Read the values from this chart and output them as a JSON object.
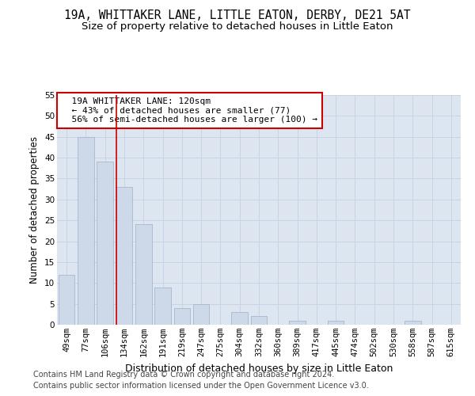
{
  "title1": "19A, WHITTAKER LANE, LITTLE EATON, DERBY, DE21 5AT",
  "title2": "Size of property relative to detached houses in Little Eaton",
  "xlabel": "Distribution of detached houses by size in Little Eaton",
  "ylabel": "Number of detached properties",
  "categories": [
    "49sqm",
    "77sqm",
    "106sqm",
    "134sqm",
    "162sqm",
    "191sqm",
    "219sqm",
    "247sqm",
    "275sqm",
    "304sqm",
    "332sqm",
    "360sqm",
    "389sqm",
    "417sqm",
    "445sqm",
    "474sqm",
    "502sqm",
    "530sqm",
    "558sqm",
    "587sqm",
    "615sqm"
  ],
  "values": [
    12,
    45,
    39,
    33,
    24,
    9,
    4,
    5,
    0,
    3,
    2,
    0,
    1,
    0,
    1,
    0,
    0,
    0,
    1,
    0,
    0
  ],
  "bar_color": "#cdd9e8",
  "bar_edgecolor": "#aabdd4",
  "redline_x": 2.57,
  "annotation_text": "  19A WHITTAKER LANE: 120sqm\n  ← 43% of detached houses are smaller (77)\n  56% of semi-detached houses are larger (100) →",
  "annotation_box_color": "#ffffff",
  "annotation_box_edgecolor": "#cc0000",
  "grid_color": "#c8d4e4",
  "background_color": "#dde5f0",
  "ylim": [
    0,
    55
  ],
  "yticks": [
    0,
    5,
    10,
    15,
    20,
    25,
    30,
    35,
    40,
    45,
    50,
    55
  ],
  "footer1": "Contains HM Land Registry data © Crown copyright and database right 2024.",
  "footer2": "Contains public sector information licensed under the Open Government Licence v3.0.",
  "title1_fontsize": 10.5,
  "title2_fontsize": 9.5,
  "xlabel_fontsize": 9,
  "ylabel_fontsize": 8.5,
  "tick_fontsize": 7.5,
  "footer_fontsize": 7,
  "annot_fontsize": 8
}
